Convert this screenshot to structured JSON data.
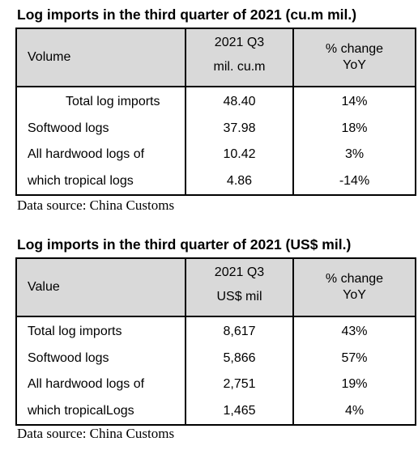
{
  "table1": {
    "title": "Log imports in the third quarter of 2021 (cu.m mil.)",
    "header": {
      "label": "Volume",
      "col2_line1": "2021 Q3",
      "col2_line2": "mil. cu.m",
      "col3_line1": "% change",
      "col3_line2": "YoY"
    },
    "rows": [
      {
        "name": "Total log imports",
        "value": "48.40",
        "change": "14%"
      },
      {
        "name": "Softwood logs",
        "value": "37.98",
        "change": "18%"
      },
      {
        "name": "All hardwood logs of",
        "value": "10.42",
        "change": "3%"
      },
      {
        "name": "which tropical logs",
        "value": "4.86",
        "change": "-14%"
      }
    ],
    "source": "Data source: China Customs"
  },
  "table2": {
    "title": "Log imports in the third quarter of 2021 (US$ mil.)",
    "header": {
      "label": "Value",
      "col2_line1": "2021 Q3",
      "col2_line2": "US$ mil",
      "col3_line1": "% change",
      "col3_line2": "YoY"
    },
    "rows": [
      {
        "name": "Total log imports",
        "value": "8,617",
        "change": "43%"
      },
      {
        "name": "Softwood logs",
        "value": "5,866",
        "change": "57%"
      },
      {
        "name": "All hardwood logs of",
        "value": "2,751",
        "change": "19%"
      },
      {
        "name": "which tropicalLogs",
        "value": "1,465",
        "change": "4%"
      }
    ],
    "source": "Data source: China Customs"
  }
}
